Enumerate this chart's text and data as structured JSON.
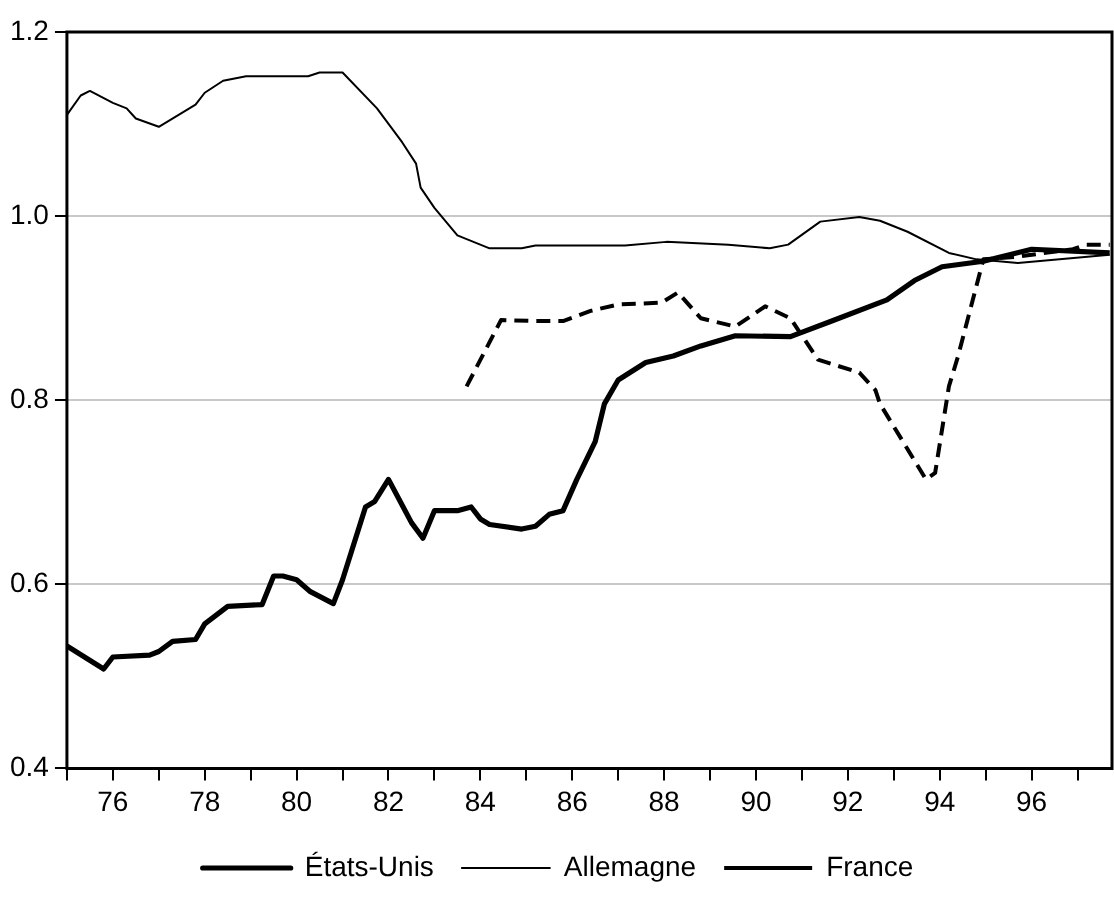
{
  "chart_data": {
    "type": "line",
    "xlim": [
      75,
      97.75
    ],
    "xticks": [
      {
        "value": 75,
        "label": null
      },
      76,
      {
        "value": 77,
        "label": null
      },
      78,
      {
        "value": 79,
        "label": null
      },
      80,
      {
        "value": 81,
        "label": null
      },
      82,
      {
        "value": 83,
        "label": null
      },
      84,
      {
        "value": 85,
        "label": null
      },
      86,
      {
        "value": 87,
        "label": null
      },
      88,
      {
        "value": 89,
        "label": null
      },
      90,
      {
        "value": 91,
        "label": null
      },
      92,
      {
        "value": 93,
        "label": null
      },
      94,
      {
        "value": 95,
        "label": null
      },
      96,
      {
        "value": 97,
        "label": null
      }
    ],
    "ylim": [
      0.4,
      1.2
    ],
    "yticks": [
      0.4,
      0.6,
      0.8,
      {
        "value": 1,
        "label": "1.0"
      },
      1.2
    ],
    "grid": "y",
    "legend": "bottom",
    "series": [
      {
        "name": "États-Unis",
        "color": "#000000",
        "line_style": "solid",
        "x": [
          75,
          75.8,
          76,
          76.8,
          77,
          77.3,
          77.8,
          78,
          78.5,
          79.25,
          79.5,
          79.7,
          80,
          80.3,
          80.8,
          81,
          81.5,
          81.7,
          82,
          82.5,
          82.75,
          83,
          83.5,
          83.8,
          84,
          84.2,
          84.9,
          85.2,
          85.5,
          85.8,
          86.1,
          86.5,
          86.7,
          87,
          87.6,
          88.2,
          88.8,
          89.55,
          90.75,
          91.65,
          92.85,
          93.45,
          94.05,
          94.95,
          96,
          97.7
        ],
        "values": [
          0.533,
          0.508,
          0.521,
          0.523,
          0.527,
          0.538,
          0.54,
          0.557,
          0.576,
          0.578,
          0.609,
          0.609,
          0.605,
          0.592,
          0.579,
          0.605,
          0.684,
          0.69,
          0.714,
          0.667,
          0.65,
          0.68,
          0.68,
          0.684,
          0.671,
          0.665,
          0.66,
          0.663,
          0.676,
          0.68,
          0.714,
          0.755,
          0.796,
          0.822,
          0.841,
          0.848,
          0.859,
          0.87,
          0.869,
          0.886,
          0.909,
          0.93,
          0.945,
          0.951,
          0.964,
          0.96
        ]
      },
      {
        "name": "Allemagne",
        "color": "#000000",
        "line_style": "solid",
        "x": [
          75,
          75.3,
          75.5,
          76,
          76.3,
          76.5,
          77,
          77.8,
          78,
          78.4,
          78.9,
          80.25,
          80.5,
          81,
          81.75,
          82.3,
          82.6,
          82.7,
          83,
          83.5,
          84.2,
          84.9,
          85.2,
          87.15,
          88.05,
          89.4,
          90.3,
          90.7,
          91.4,
          92.25,
          92.7,
          93.3,
          94.2,
          94.8,
          95.7,
          97.7
        ],
        "values": [
          1.11,
          1.131,
          1.136,
          1.123,
          1.117,
          1.106,
          1.097,
          1.121,
          1.134,
          1.147,
          1.152,
          1.152,
          1.156,
          1.156,
          1.117,
          1.08,
          1.057,
          1.031,
          1.009,
          0.979,
          0.965,
          0.965,
          0.968,
          0.968,
          0.972,
          0.969,
          0.965,
          0.969,
          0.994,
          0.999,
          0.995,
          0.983,
          0.96,
          0.953,
          0.949,
          0.958
        ]
      },
      {
        "name": "France",
        "color": "#000000",
        "line_style": "dashed",
        "x": [
          83.7,
          84.45,
          85.2,
          85.8,
          86.4,
          87,
          87.95,
          88.3,
          88.8,
          89.55,
          90.2,
          90.75,
          91.35,
          92.25,
          92.6,
          92.7,
          93.7,
          93.9,
          94.2,
          94.4,
          94.95,
          95.7,
          96.9,
          97.2,
          97.7
        ],
        "values": [
          0.815,
          0.887,
          0.886,
          0.886,
          0.897,
          0.904,
          0.906,
          0.917,
          0.889,
          0.88,
          0.902,
          0.889,
          0.844,
          0.83,
          0.811,
          0.796,
          0.714,
          0.721,
          0.815,
          0.848,
          0.953,
          0.956,
          0.964,
          0.969,
          0.969
        ]
      }
    ]
  }
}
